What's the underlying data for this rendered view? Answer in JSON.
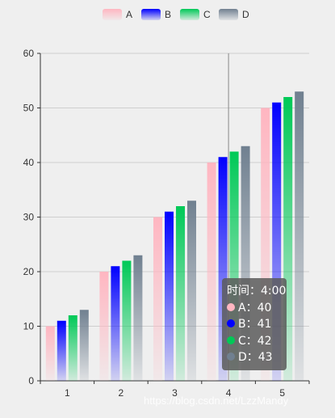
{
  "chart_data": {
    "type": "bar",
    "categories": [
      "1",
      "2",
      "3",
      "4",
      "5"
    ],
    "series": [
      {
        "name": "A",
        "values": [
          10,
          20,
          30,
          40,
          50
        ],
        "color": "#ffb6c1"
      },
      {
        "name": "B",
        "values": [
          11,
          21,
          31,
          41,
          51
        ],
        "color": "#0000ff"
      },
      {
        "name": "C",
        "values": [
          12,
          22,
          32,
          42,
          52
        ],
        "color": "#00c957"
      },
      {
        "name": "D",
        "values": [
          13,
          23,
          33,
          43,
          53
        ],
        "color": "#708090"
      }
    ],
    "ylim": [
      0,
      60
    ],
    "yticks": [
      0,
      10,
      20,
      30,
      40,
      50,
      60
    ],
    "grid": true,
    "legend_position": "top-center",
    "bar_fill": "vertical gradient fading to light at base"
  },
  "tooltip": {
    "title": "时间：4:00",
    "rows": [
      {
        "label": "A：40",
        "color": "#ffb6c1"
      },
      {
        "label": "B：41",
        "color": "#0000ff"
      },
      {
        "label": "C：42",
        "color": "#00c957"
      },
      {
        "label": "D：43",
        "color": "#708090"
      }
    ]
  },
  "watermark": "https://blog.csdn.net/LzzMandy"
}
